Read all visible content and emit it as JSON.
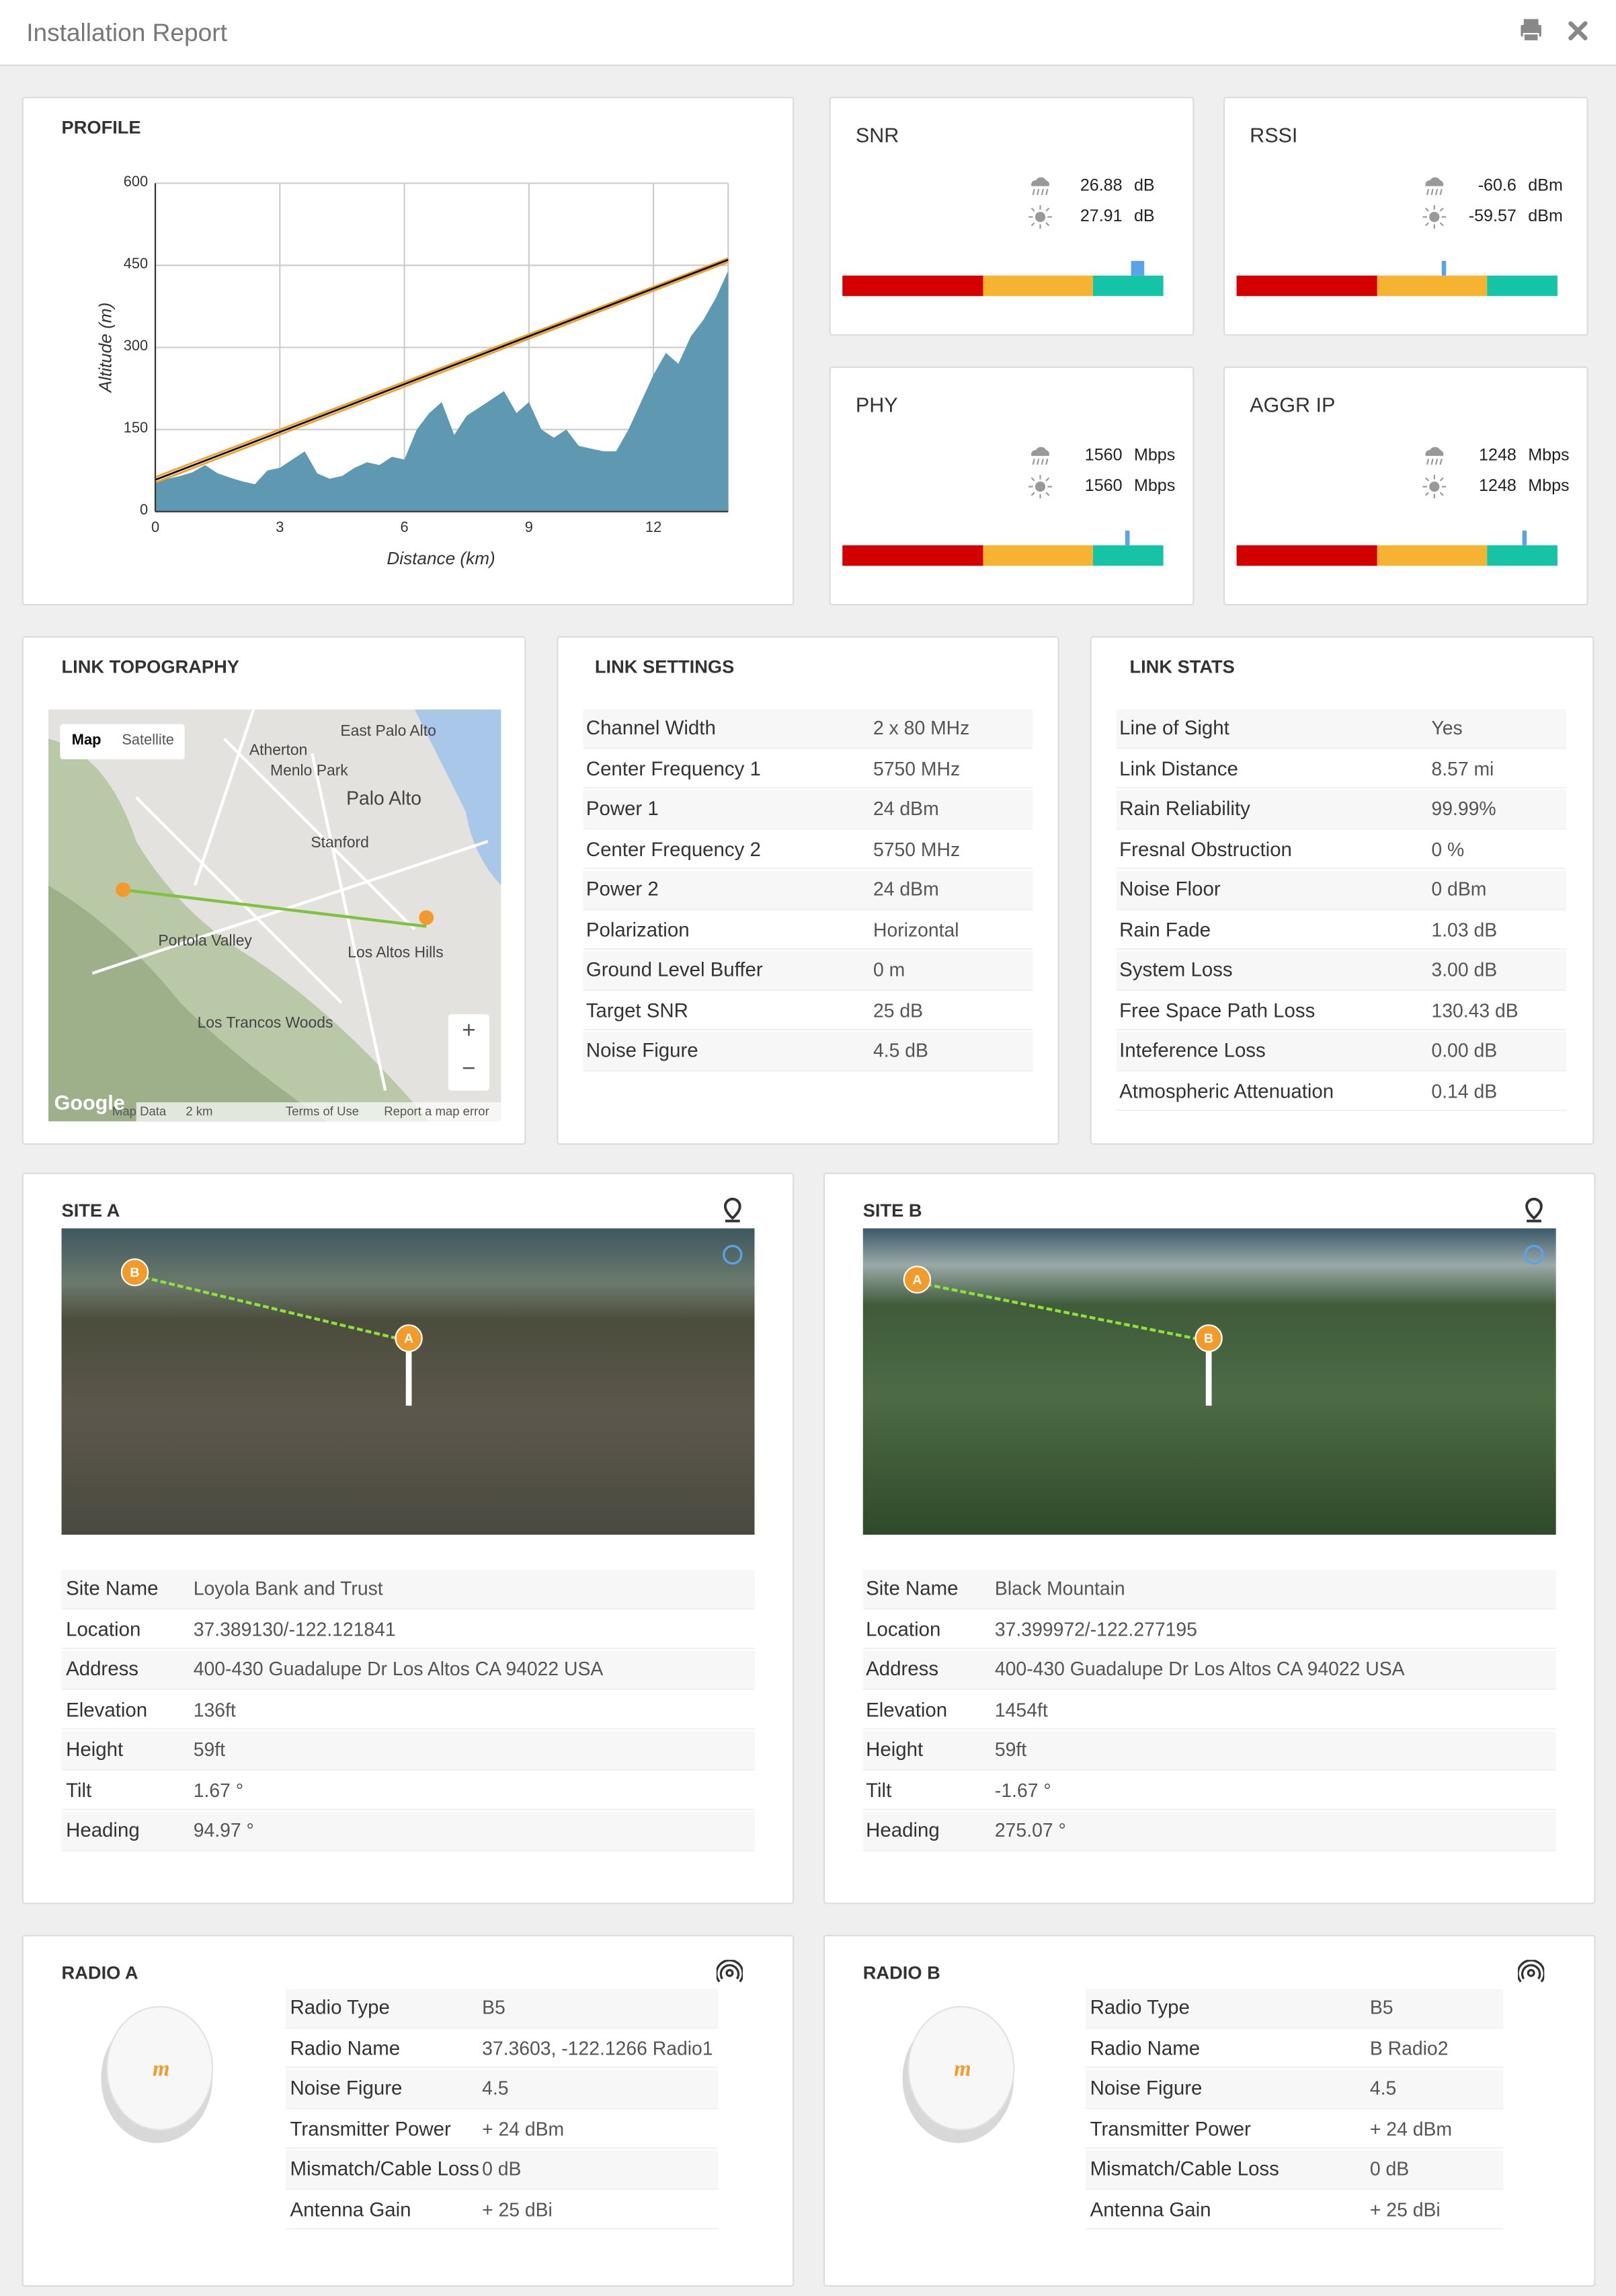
{
  "header": {
    "title": "Installation Report"
  },
  "profile": {
    "title": "PROFILE",
    "chart": {
      "type": "area",
      "x_label": "Distance (km)",
      "y_label": "Altitude (m)",
      "xlim": [
        0,
        13.8
      ],
      "ylim": [
        0,
        600
      ],
      "xticks": [
        0,
        3,
        6,
        9,
        12
      ],
      "yticks": [
        0,
        150,
        300,
        450,
        600
      ],
      "grid": true,
      "x": [
        0,
        0.3,
        0.6,
        0.9,
        1.2,
        1.5,
        1.8,
        2.1,
        2.4,
        2.7,
        3.0,
        3.3,
        3.6,
        3.9,
        4.2,
        4.5,
        4.8,
        5.1,
        5.4,
        5.7,
        6.0,
        6.3,
        6.6,
        6.9,
        7.2,
        7.5,
        7.8,
        8.1,
        8.4,
        8.7,
        9.0,
        9.3,
        9.6,
        9.9,
        10.2,
        10.5,
        10.8,
        11.1,
        11.4,
        11.7,
        12.0,
        12.3,
        12.6,
        12.9,
        13.2,
        13.5,
        13.8
      ],
      "terrain": {
        "color": "#5e98b1",
        "values": [
          55,
          60,
          65,
          72,
          85,
          70,
          62,
          55,
          50,
          75,
          80,
          95,
          110,
          70,
          60,
          65,
          80,
          90,
          85,
          100,
          95,
          150,
          180,
          200,
          140,
          175,
          190,
          205,
          220,
          180,
          200,
          150,
          135,
          150,
          120,
          115,
          110,
          110,
          150,
          200,
          250,
          290,
          270,
          320,
          350,
          390,
          440
        ]
      },
      "line_of_sight": {
        "x": [
          0,
          13.8
        ],
        "color": "#111111",
        "values": [
          58,
          460
        ]
      },
      "fresnel_upper": {
        "x": [
          0,
          13.8
        ],
        "color": "#f0a030",
        "values": [
          63,
          463
        ]
      },
      "fresnel_lower": {
        "x": [
          0,
          13.8
        ],
        "color": "#f0a030",
        "values": [
          53,
          456
        ]
      }
    }
  },
  "meters": [
    {
      "title": "SNR",
      "rain": {
        "value": 26.88,
        "unit": "dB"
      },
      "sun": {
        "value": 27.91,
        "unit": "dB"
      }
    },
    {
      "title": "RSSI",
      "rain": {
        "value": -60.6,
        "unit": "dBm"
      },
      "sun": {
        "value": -59.57,
        "unit": "dBm"
      }
    },
    {
      "title": "PHY",
      "rain": {
        "value": 1560,
        "unit": "Mbps"
      },
      "sun": {
        "value": 1560,
        "unit": "Mbps"
      }
    },
    {
      "title": "AGGR IP",
      "rain": {
        "value": 1248,
        "unit": "Mbps"
      },
      "sun": {
        "value": 1248,
        "unit": "Mbps"
      }
    }
  ],
  "link_topography": {
    "title": "LINK TOPOGRAPHY",
    "map": {
      "buttons": [
        "Map",
        "Satellite"
      ],
      "labels": [
        "East Palo Alto",
        "Atherton",
        "Menlo Park",
        "Palo Alto",
        "Stanford",
        "Portola Valley",
        "Los Altos Hills",
        "Los Trancos Woods"
      ],
      "zoom": [
        "+",
        "−"
      ],
      "footer": [
        "Map Data",
        "2 km",
        "Terms of Use",
        "Report a map error"
      ],
      "logo": "Google"
    }
  },
  "link_settings": {
    "title": "LINK SETTINGS",
    "rows": [
      [
        "Channel Width",
        "2 x 80 MHz"
      ],
      [
        "Center Frequency 1",
        "5750 MHz"
      ],
      [
        "Power 1",
        "24 dBm"
      ],
      [
        "Center Frequency 2",
        "5750 MHz"
      ],
      [
        "Power 2",
        "24 dBm"
      ],
      [
        "Polarization",
        "Horizontal"
      ],
      [
        "Ground Level Buffer",
        "0 m"
      ],
      [
        "Target SNR",
        "25 dB"
      ],
      [
        "Noise Figure",
        "4.5 dB"
      ]
    ]
  },
  "link_stats": {
    "title": "LINK STATS",
    "rows": [
      [
        "Line of Sight",
        "Yes"
      ],
      [
        "Link Distance",
        "8.57  mi"
      ],
      [
        "Rain Reliability",
        "99.99%"
      ],
      [
        "Fresnal Obstruction",
        "0 %"
      ],
      [
        "Noise Floor",
        "0  dBm"
      ],
      [
        "Rain Fade",
        "1.03  dB"
      ],
      [
        "System Loss",
        "3.00  dB"
      ],
      [
        "Free Space Path Loss",
        "130.43  dB"
      ],
      [
        "Inteference Loss",
        "0.00  dB"
      ],
      [
        "Atmospheric Attenuation",
        "0.14  dB"
      ]
    ]
  },
  "sites": [
    {
      "title": "SITE A",
      "markers": [
        "B",
        "A"
      ],
      "rows": [
        [
          "Site Name",
          "Loyola Bank and Trust"
        ],
        [
          "Location",
          "37.389130/-122.121841"
        ],
        [
          "Address",
          "400-430 Guadalupe Dr Los Altos CA 94022 USA"
        ],
        [
          "Elevation",
          "136ft"
        ],
        [
          "Height",
          "59ft"
        ],
        [
          "Tilt",
          "1.67 °"
        ],
        [
          "Heading",
          "94.97 °"
        ]
      ]
    },
    {
      "title": "SITE B",
      "markers": [
        "A",
        "B"
      ],
      "rows": [
        [
          "Site Name",
          "Black Mountain"
        ],
        [
          "Location",
          "37.399972/-122.277195"
        ],
        [
          "Address",
          "400-430 Guadalupe Dr Los Altos CA 94022 USA"
        ],
        [
          "Elevation",
          "1454ft"
        ],
        [
          "Height",
          "59ft"
        ],
        [
          "Tilt",
          "-1.67 °"
        ],
        [
          "Heading",
          "275.07 °"
        ]
      ]
    }
  ],
  "radios": [
    {
      "title": "RADIO A",
      "logo": "m",
      "rows": [
        [
          "Radio Type",
          "B5"
        ],
        [
          "Radio Name",
          "37.3603, -122.1266 Radio1"
        ],
        [
          "Noise Figure",
          "4.5"
        ],
        [
          "Transmitter Power",
          "+ 24 dBm"
        ],
        [
          "Mismatch/Cable Loss",
          "0 dB"
        ],
        [
          "Antenna Gain",
          "+ 25 dBi"
        ]
      ]
    },
    {
      "title": "RADIO B",
      "logo": "m",
      "rows": [
        [
          "Radio Type",
          "B5"
        ],
        [
          "Radio Name",
          "B Radio2"
        ],
        [
          "Noise Figure",
          "4.5"
        ],
        [
          "Transmitter Power",
          "+ 24 dBm"
        ],
        [
          "Mismatch/Cable Loss",
          "0 dB"
        ],
        [
          "Antenna Gain",
          "+ 25 dBi"
        ]
      ]
    }
  ]
}
